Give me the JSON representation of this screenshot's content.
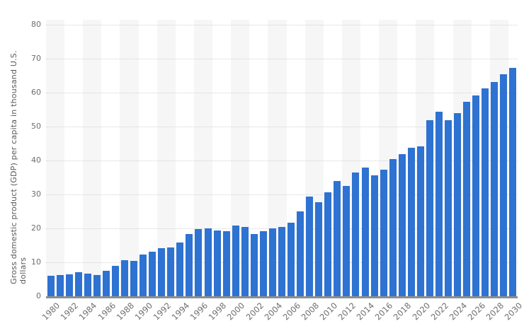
{
  "chart_data": {
    "type": "bar",
    "ylabel": "Gross domestic product (GDP) per capita in thousand U.S. dollars",
    "xlabel": "",
    "ylim": [
      0,
      80
    ],
    "yticks": [
      0,
      10,
      20,
      30,
      40,
      50,
      60,
      70,
      80
    ],
    "grid": "horizontal-dotted",
    "legend": "none",
    "x": [
      1980,
      1981,
      1982,
      1983,
      1984,
      1985,
      1986,
      1987,
      1988,
      1989,
      1990,
      1991,
      1992,
      1993,
      1994,
      1995,
      1996,
      1997,
      1998,
      1999,
      2000,
      2001,
      2002,
      2003,
      2004,
      2005,
      2006,
      2007,
      2008,
      2009,
      2010,
      2011,
      2012,
      2013,
      2014,
      2015,
      2016,
      2017,
      2018,
      2019,
      2020,
      2021,
      2022,
      2023,
      2024,
      2025,
      2026,
      2027,
      2028,
      2029,
      2030
    ],
    "values": [
      6.0,
      6.2,
      6.4,
      7.0,
      6.7,
      6.2,
      7.4,
      8.9,
      10.6,
      10.5,
      12.3,
      13.2,
      14.2,
      14.3,
      15.9,
      18.3,
      19.7,
      20.0,
      19.4,
      19.2,
      20.9,
      20.5,
      18.3,
      19.1,
      20.0,
      20.5,
      21.7,
      25.0,
      29.4,
      27.8,
      30.7,
      33.9,
      32.6,
      36.4,
      37.9,
      35.7,
      37.2,
      40.5,
      41.9,
      43.8,
      44.2,
      51.9,
      54.4,
      51.8,
      53.9,
      57.3,
      59.2,
      61.3,
      63.2,
      65.4,
      67.4
    ],
    "xtick_labels": [
      "1980",
      "1982",
      "1984",
      "1986",
      "1988",
      "1990",
      "1992",
      "1994",
      "1996",
      "1998",
      "2000",
      "2002",
      "2004",
      "2006",
      "2008",
      "2010",
      "2012",
      "2014",
      "2016",
      "2018",
      "2020",
      "2022",
      "2024",
      "2026",
      "2028",
      "2030"
    ],
    "colors": {
      "bar": "#2e72d2",
      "alt_band": "#f6f6f6",
      "gridline": "#d2d2d2",
      "axis_line": "#8e8e8e",
      "tick_text": "#6e6e6e",
      "ylabel_text": "#595959"
    }
  }
}
